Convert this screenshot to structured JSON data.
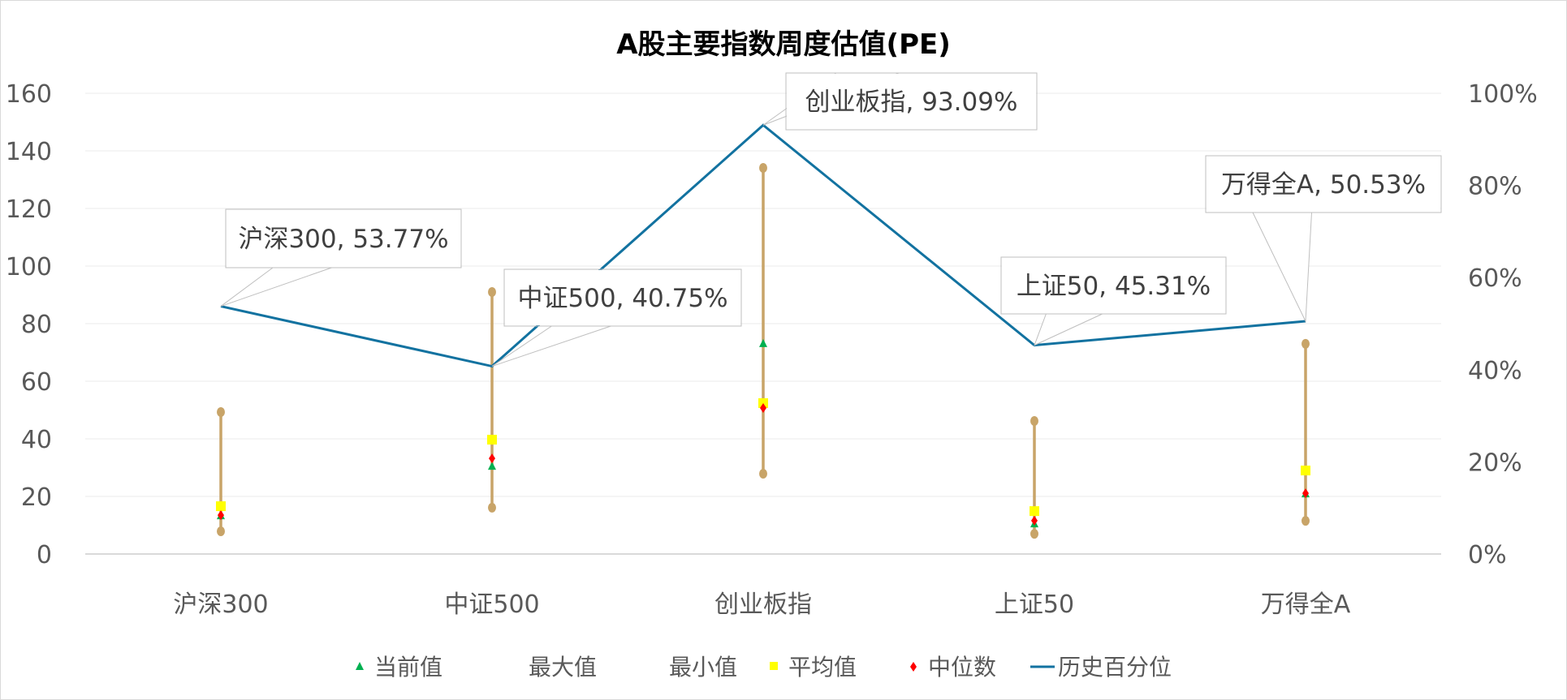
{
  "chart_data": {
    "type": "line",
    "title": "A股主要指数周度估值(PE)",
    "categories": [
      "沪深300",
      "中证500",
      "创业板指",
      "上证50",
      "万得全A"
    ],
    "y_left": {
      "range": [
        0,
        160
      ],
      "ticks": [
        "0",
        "20",
        "40",
        "60",
        "80",
        "100",
        "120",
        "140",
        "160"
      ]
    },
    "y_right": {
      "range": [
        0,
        1
      ],
      "ticks": [
        "0%",
        "20%",
        "40%",
        "60%",
        "80%",
        "100%"
      ]
    },
    "grid": true,
    "legend_position": "bottom",
    "series": [
      {
        "name": "当前值",
        "kind": "marker-triangle",
        "color": "#00b050",
        "values": [
          13.2,
          30.4,
          73.0,
          10.4,
          20.8
        ]
      },
      {
        "name": "最大值",
        "kind": "range-top",
        "color": "#c8a468",
        "values": [
          49.3,
          91.0,
          134.1,
          46.2,
          73.0
        ]
      },
      {
        "name": "最小值",
        "kind": "range-bottom",
        "color": "#c8a468",
        "values": [
          7.9,
          16.1,
          27.9,
          7.0,
          11.5
        ]
      },
      {
        "name": "平均值",
        "kind": "marker-square",
        "color": "#ffff00",
        "values": [
          16.6,
          39.7,
          52.4,
          14.9,
          29.0
        ]
      },
      {
        "name": "中位数",
        "kind": "marker-diamond",
        "color": "#ff0000",
        "values": [
          13.5,
          33.2,
          50.7,
          11.6,
          21.1
        ]
      },
      {
        "name": "历史百分位",
        "kind": "line-right-axis",
        "color": "#1272a0",
        "values": [
          0.5377,
          0.4075,
          0.9309,
          0.4531,
          0.5053
        ]
      }
    ],
    "data_labels": [
      "沪深300, 53.77%",
      "中证500, 40.75%",
      "创业板指, 93.09%",
      "上证50, 45.31%",
      "万得全A, 50.53%"
    ]
  }
}
